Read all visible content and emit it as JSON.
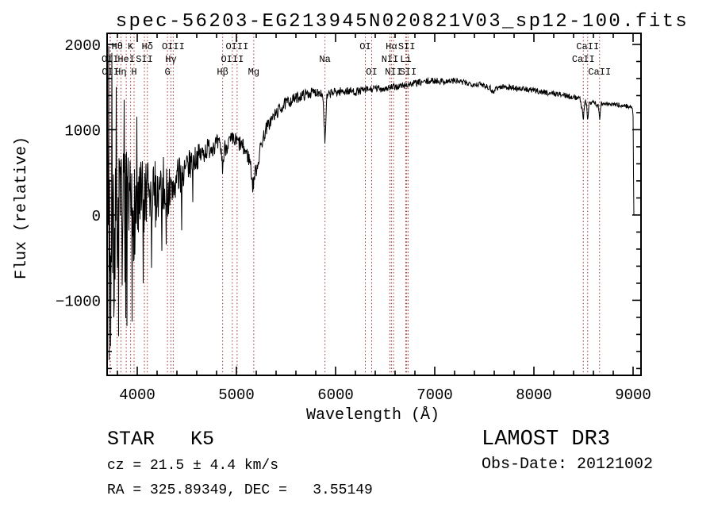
{
  "page": {
    "background": "#ffffff"
  },
  "chart_data": {
    "type": "line",
    "title": "spec-56203-EG213945N020821V03_sp12-100.fits",
    "xlabel": "Wavelength (Å)",
    "ylabel": "Flux (relative)",
    "xlim": [
      3696,
      9080
    ],
    "ylim": [
      -1880,
      2130
    ],
    "grid": false,
    "legend": false,
    "curve_color": "#000000",
    "marker_color": "#a03030",
    "axis_color": "#000000",
    "x_ticks": {
      "values": [
        4000,
        5000,
        6000,
        7000,
        8000,
        9000
      ],
      "labels": [
        "4000",
        "5000",
        "6000",
        "7000",
        "8000",
        "9000"
      ]
    },
    "y_ticks": {
      "values": [
        -1000,
        0,
        1000,
        2000
      ],
      "labels": [
        "−1000",
        "0",
        "1000",
        "2000"
      ]
    },
    "x_minor_step": 200,
    "y_minor_step": 200,
    "spectral_lines": [
      {
        "label": "OII",
        "wavelength": 3726,
        "row": 2
      },
      {
        "label": "OII",
        "wavelength": 3729,
        "row": 3
      },
      {
        "label": "Hθ",
        "wavelength": 3798,
        "row": 1
      },
      {
        "label": "Hη",
        "wavelength": 3835,
        "row": 3
      },
      {
        "label": "HeI",
        "wavelength": 3889,
        "row": 2
      },
      {
        "label": "K",
        "wavelength": 3933,
        "row": 1
      },
      {
        "label": "H",
        "wavelength": 3968,
        "row": 3
      },
      {
        "label": "SII",
        "wavelength": 4072,
        "row": 2
      },
      {
        "label": "Hδ",
        "wavelength": 4102,
        "row": 1
      },
      {
        "label": "G",
        "wavelength": 4305,
        "row": 3
      },
      {
        "label": "Hγ",
        "wavelength": 4340,
        "row": 2
      },
      {
        "label": "OIII",
        "wavelength": 4363,
        "row": 1
      },
      {
        "label": "Hβ",
        "wavelength": 4861,
        "row": 3
      },
      {
        "label": "OIII",
        "wavelength": 4959,
        "row": 2
      },
      {
        "label": "OIII",
        "wavelength": 5007,
        "row": 1
      },
      {
        "label": "Mg",
        "wavelength": 5175,
        "row": 3
      },
      {
        "label": "Na",
        "wavelength": 5893,
        "row": 2
      },
      {
        "label": "OI",
        "wavelength": 6300,
        "row": 1
      },
      {
        "label": "OI",
        "wavelength": 6364,
        "row": 3
      },
      {
        "label": "NII",
        "wavelength": 6548,
        "row": 2
      },
      {
        "label": "Hα",
        "wavelength": 6563,
        "row": 1
      },
      {
        "label": "NII",
        "wavelength": 6584,
        "row": 3
      },
      {
        "label": "Li",
        "wavelength": 6708,
        "row": 2
      },
      {
        "label": "SII",
        "wavelength": 6717,
        "row": 1
      },
      {
        "label": "SII",
        "wavelength": 6731,
        "row": 3
      },
      {
        "label": "CaII",
        "wavelength": 8498,
        "row": 2
      },
      {
        "label": "CaII",
        "wavelength": 8542,
        "row": 1
      },
      {
        "label": "CaII",
        "wavelength": 8662,
        "row": 3
      }
    ],
    "series": [
      {
        "name": "spectrum",
        "sample_step_angstrom": 4,
        "seed": 7,
        "anchors": [
          [
            3696,
            0
          ],
          [
            3720,
            -100
          ],
          [
            3760,
            150
          ],
          [
            3800,
            0
          ],
          [
            3840,
            -80
          ],
          [
            3880,
            60
          ],
          [
            3920,
            -50
          ],
          [
            3960,
            80
          ],
          [
            4000,
            60
          ],
          [
            4040,
            120
          ],
          [
            4080,
            140
          ],
          [
            4120,
            180
          ],
          [
            4160,
            220
          ],
          [
            4200,
            280
          ],
          [
            4240,
            330
          ],
          [
            4280,
            360
          ],
          [
            4306,
            230
          ],
          [
            4330,
            320
          ],
          [
            4342,
            200
          ],
          [
            4360,
            340
          ],
          [
            4400,
            420
          ],
          [
            4450,
            480
          ],
          [
            4500,
            550
          ],
          [
            4550,
            620
          ],
          [
            4600,
            680
          ],
          [
            4650,
            710
          ],
          [
            4700,
            770
          ],
          [
            4750,
            810
          ],
          [
            4800,
            830
          ],
          [
            4840,
            800
          ],
          [
            4862,
            560
          ],
          [
            4880,
            780
          ],
          [
            4920,
            850
          ],
          [
            4960,
            870
          ],
          [
            5000,
            860
          ],
          [
            5040,
            830
          ],
          [
            5080,
            770
          ],
          [
            5120,
            680
          ],
          [
            5140,
            620
          ],
          [
            5165,
            330
          ],
          [
            5185,
            480
          ],
          [
            5215,
            600
          ],
          [
            5250,
            830
          ],
          [
            5300,
            1010
          ],
          [
            5350,
            1110
          ],
          [
            5400,
            1190
          ],
          [
            5450,
            1260
          ],
          [
            5500,
            1310
          ],
          [
            5550,
            1340
          ],
          [
            5600,
            1370
          ],
          [
            5650,
            1395
          ],
          [
            5700,
            1415
          ],
          [
            5750,
            1430
          ],
          [
            5800,
            1440
          ],
          [
            5850,
            1445
          ],
          [
            5874,
            1380
          ],
          [
            5893,
            830
          ],
          [
            5912,
            1380
          ],
          [
            5950,
            1430
          ],
          [
            6000,
            1440
          ],
          [
            6100,
            1455
          ],
          [
            6200,
            1445
          ],
          [
            6300,
            1465
          ],
          [
            6400,
            1480
          ],
          [
            6500,
            1485
          ],
          [
            6600,
            1500
          ],
          [
            6700,
            1520
          ],
          [
            6800,
            1545
          ],
          [
            6900,
            1560
          ],
          [
            7000,
            1575
          ],
          [
            7100,
            1565
          ],
          [
            7200,
            1575
          ],
          [
            7300,
            1550
          ],
          [
            7400,
            1535
          ],
          [
            7500,
            1525
          ],
          [
            7560,
            1490
          ],
          [
            7590,
            1435
          ],
          [
            7615,
            1490
          ],
          [
            7700,
            1505
          ],
          [
            7800,
            1490
          ],
          [
            7900,
            1475
          ],
          [
            8000,
            1460
          ],
          [
            8100,
            1440
          ],
          [
            8200,
            1425
          ],
          [
            8300,
            1405
          ],
          [
            8400,
            1385
          ],
          [
            8460,
            1370
          ],
          [
            8485,
            1260
          ],
          [
            8498,
            1120
          ],
          [
            8512,
            1330
          ],
          [
            8530,
            1300
          ],
          [
            8542,
            1090
          ],
          [
            8556,
            1320
          ],
          [
            8600,
            1330
          ],
          [
            8650,
            1280
          ],
          [
            8662,
            1110
          ],
          [
            8676,
            1300
          ],
          [
            8750,
            1300
          ],
          [
            8850,
            1290
          ],
          [
            8950,
            1275
          ],
          [
            8990,
            1260
          ],
          [
            9000,
            1150
          ],
          [
            9004,
            500
          ],
          [
            9008,
            -20
          ]
        ],
        "noise_envelope": [
          [
            3696,
            1020
          ],
          [
            3750,
            920
          ],
          [
            3850,
            780
          ],
          [
            3950,
            640
          ],
          [
            4050,
            520
          ],
          [
            4150,
            430
          ],
          [
            4250,
            350
          ],
          [
            4350,
            270
          ],
          [
            4450,
            210
          ],
          [
            4600,
            150
          ],
          [
            4800,
            115
          ],
          [
            5000,
            105
          ],
          [
            5200,
            92
          ],
          [
            5400,
            78
          ],
          [
            5600,
            66
          ],
          [
            5900,
            56
          ],
          [
            6300,
            46
          ],
          [
            6800,
            40
          ],
          [
            7300,
            37
          ],
          [
            7800,
            34
          ],
          [
            8300,
            32
          ],
          [
            8800,
            29
          ],
          [
            9008,
            26
          ]
        ],
        "spikes": [
          [
            3712,
            1980
          ],
          [
            3716,
            -1700
          ],
          [
            3732,
            -1540
          ],
          [
            3744,
            1900
          ],
          [
            3764,
            -1200
          ],
          [
            3788,
            1500
          ],
          [
            3812,
            -1420
          ],
          [
            3868,
            1350
          ],
          [
            3896,
            -1300
          ],
          [
            3948,
            -1250
          ],
          [
            3996,
            1150
          ],
          [
            4060,
            -800
          ],
          [
            4144,
            -620
          ],
          [
            4248,
            -420
          ],
          [
            4448,
            -180
          ],
          [
            4560,
            150
          ]
        ]
      }
    ]
  },
  "annotations": {
    "class_label": "STAR   K5",
    "cz": "cz = 21.5 ± 4.4 km/s",
    "radec": "RA = 325.89349, DEC =   3.55149",
    "survey": "LAMOST DR3",
    "obs_date": "Obs-Date: 20121002"
  }
}
